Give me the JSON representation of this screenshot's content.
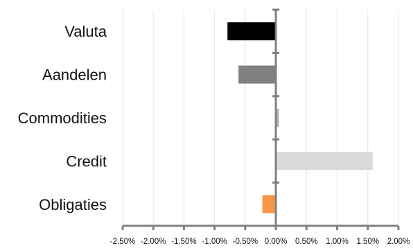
{
  "chart_data": {
    "type": "bar",
    "orientation": "horizontal",
    "title": "",
    "xlabel": "",
    "ylabel": "",
    "categories": [
      "Valuta",
      "Aandelen",
      "Commodities",
      "Credit",
      "Obligaties"
    ],
    "values": [
      -0.0079,
      -0.0061,
      0.0005,
      0.0158,
      -0.0022
    ],
    "bar_colors": [
      "#000000",
      "#808080",
      "#b4b4b4",
      "#d9d9d9",
      "#f79646"
    ],
    "xlim": [
      -0.025,
      0.02
    ],
    "x_ticks": [
      -0.025,
      -0.02,
      -0.015,
      -0.01,
      -0.005,
      0,
      0.005,
      0.01,
      0.015,
      0.02
    ],
    "x_tick_labels": [
      "-2.50%",
      "-2.00%",
      "-1.50%",
      "-1.00%",
      "-0.50%",
      "0.00%",
      "0.50%",
      "1.00%",
      "1.50%",
      "2.00%"
    ],
    "grid": "vertical",
    "legend": "none",
    "axis_color": "#808080",
    "grid_color": "#e6e6e6"
  }
}
